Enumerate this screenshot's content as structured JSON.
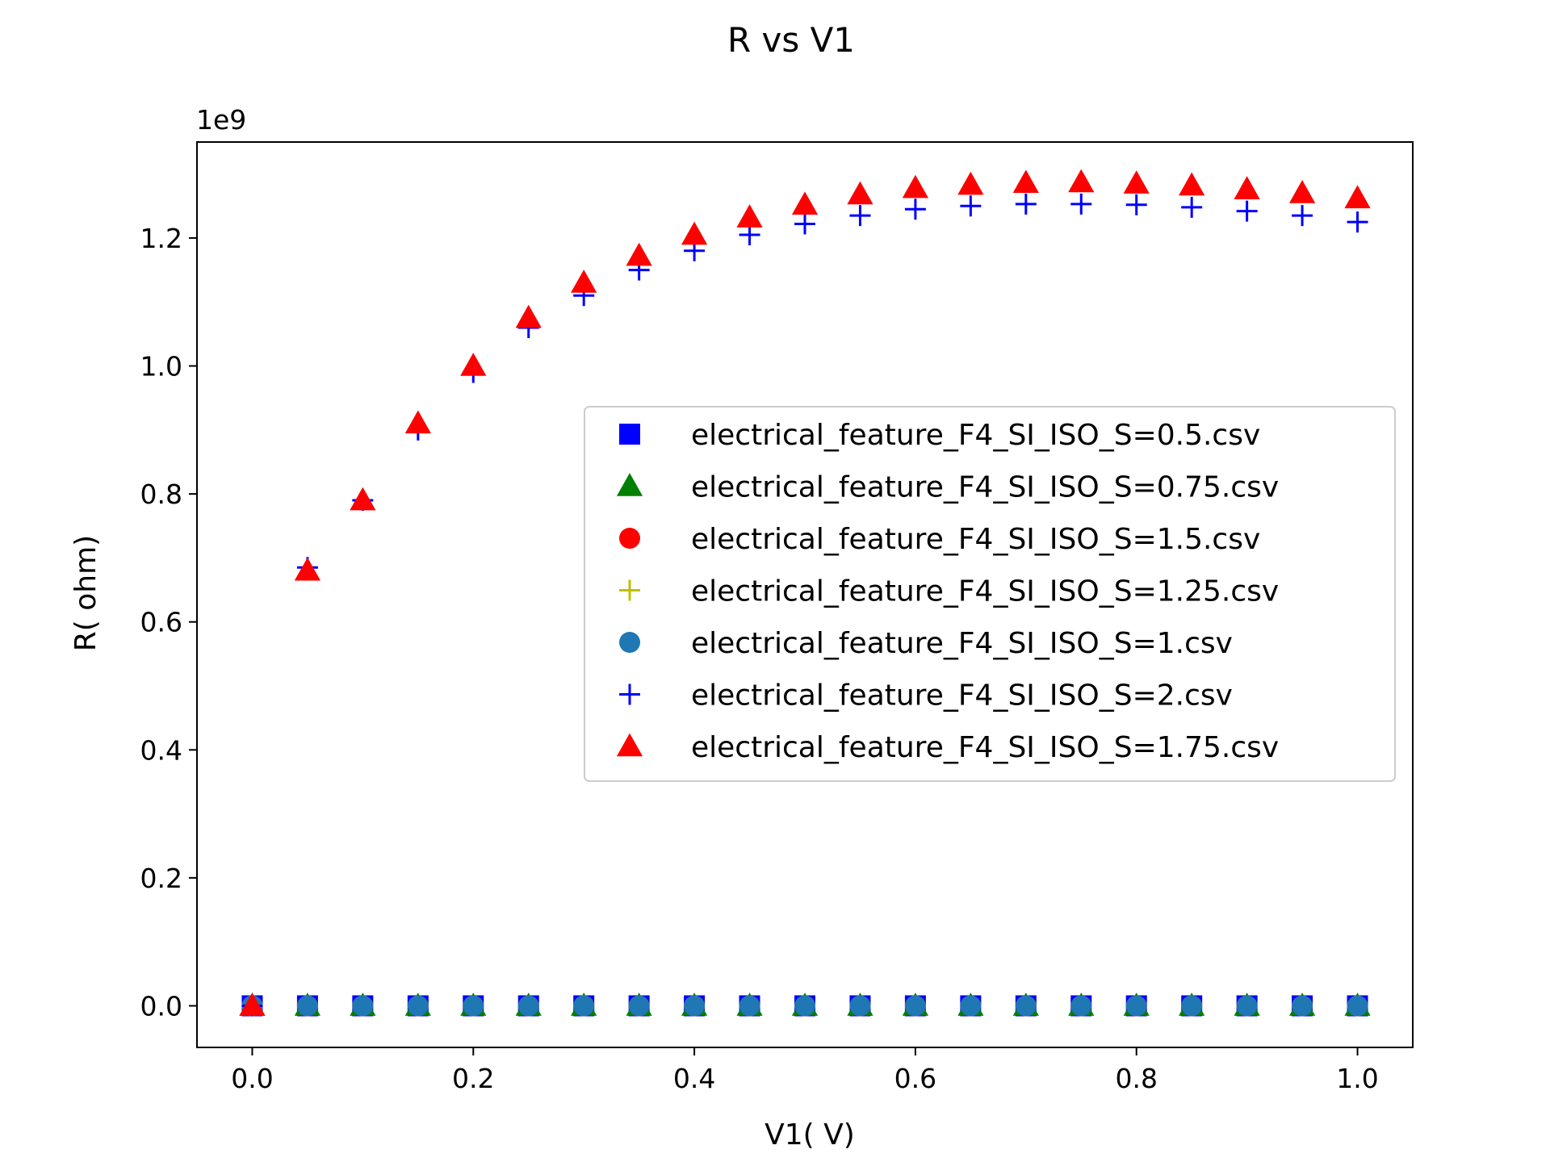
{
  "chart_data": {
    "type": "scatter",
    "title": "R vs V1",
    "xlabel": "V1( V)",
    "ylabel": "R( ohm)",
    "y_offset_text": "1e9",
    "xlim": [
      -0.05,
      1.05
    ],
    "ylim": [
      -0.065,
      1.35
    ],
    "y_scale": 1000000000,
    "xticks": [
      0.0,
      0.2,
      0.4,
      0.6,
      0.8,
      1.0
    ],
    "xtick_labels": [
      "0.0",
      "0.2",
      "0.4",
      "0.6",
      "0.8",
      "1.0"
    ],
    "yticks": [
      0.0,
      0.2,
      0.4,
      0.6,
      0.8,
      1.0,
      1.2
    ],
    "ytick_labels": [
      "0.0",
      "0.2",
      "0.4",
      "0.6",
      "0.8",
      "1.0",
      "1.2"
    ],
    "grid": false,
    "legend_position": "center-right",
    "x": [
      0.0,
      0.05,
      0.1,
      0.15,
      0.2,
      0.25,
      0.3,
      0.35,
      0.4,
      0.45,
      0.5,
      0.55,
      0.6,
      0.65,
      0.7,
      0.75,
      0.8,
      0.85,
      0.9,
      0.95,
      1.0
    ],
    "series": [
      {
        "name": "electrical_feature_F4_SI_ISO_S=0.5.csv",
        "marker": "square",
        "color": "#0000ff",
        "values": [
          0,
          0,
          0,
          0,
          0,
          0,
          0,
          0,
          0,
          0,
          0,
          0,
          0,
          0,
          0,
          0,
          0,
          0,
          0,
          0,
          0
        ]
      },
      {
        "name": "electrical_feature_F4_SI_ISO_S=0.75.csv",
        "marker": "triangle",
        "color": "#008000",
        "values": [
          0,
          0,
          0,
          0,
          0,
          0,
          0,
          0,
          0,
          0,
          0,
          0,
          0,
          0,
          0,
          0,
          0,
          0,
          0,
          0,
          0
        ]
      },
      {
        "name": "electrical_feature_F4_SI_ISO_S=1.5.csv",
        "marker": "circle",
        "color": "#ff0000",
        "values": [
          0,
          0,
          0,
          0,
          0,
          0,
          0,
          0,
          0,
          0,
          0,
          0,
          0,
          0,
          0,
          0,
          0,
          0,
          0,
          0,
          0
        ]
      },
      {
        "name": "electrical_feature_F4_SI_ISO_S=1.25.csv",
        "marker": "plus",
        "color": "#bfbf00",
        "values": [
          0,
          0,
          0,
          0,
          0,
          0,
          0,
          0,
          0,
          0,
          0,
          0,
          0,
          0,
          0,
          0,
          0,
          0,
          0,
          0,
          0
        ]
      },
      {
        "name": "electrical_feature_F4_SI_ISO_S=1.csv",
        "marker": "circle",
        "color": "#1f77b4",
        "values": [
          0,
          0,
          0,
          0,
          0,
          0,
          0,
          0,
          0,
          0,
          0,
          0,
          0,
          0,
          0,
          0,
          0,
          0,
          0,
          0,
          0
        ]
      },
      {
        "name": "electrical_feature_F4_SI_ISO_S=2.csv",
        "marker": "plus",
        "color": "#0000ff",
        "values": [
          0,
          0.685,
          0.79,
          0.9,
          0.99,
          1.06,
          1.11,
          1.15,
          1.18,
          1.205,
          1.222,
          1.235,
          1.245,
          1.25,
          1.253,
          1.253,
          1.252,
          1.248,
          1.242,
          1.235,
          1.225
        ]
      },
      {
        "name": "electrical_feature_F4_SI_ISO_S=1.75.csv",
        "marker": "triangle",
        "color": "#ff0000",
        "values": [
          0,
          0.68,
          0.79,
          0.91,
          1.0,
          1.075,
          1.13,
          1.172,
          1.205,
          1.232,
          1.252,
          1.268,
          1.278,
          1.283,
          1.286,
          1.287,
          1.285,
          1.282,
          1.276,
          1.27,
          1.262
        ]
      }
    ]
  }
}
